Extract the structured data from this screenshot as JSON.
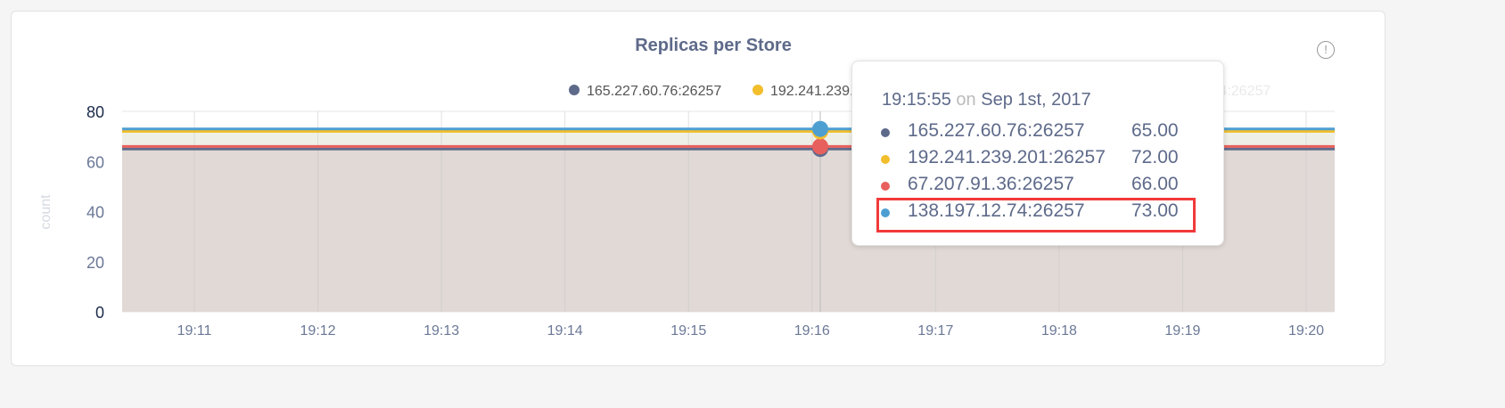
{
  "chart_data": {
    "type": "area",
    "title": "Replicas per Store",
    "ylabel": "count",
    "xlabel": "",
    "ylim": [
      0,
      80
    ],
    "yticks": [
      0,
      20,
      40,
      60,
      80
    ],
    "xticks": [
      "19:11",
      "19:12",
      "19:13",
      "19:14",
      "19:15",
      "19:16",
      "19:17",
      "19:18",
      "19:19",
      "19:20"
    ],
    "grid": true,
    "legend_position": "top",
    "series": [
      {
        "name": "165.227.60.76:26257",
        "value": 65,
        "color": "#5e6a8a"
      },
      {
        "name": "192.241.239.201:26257",
        "value": 72,
        "color": "#f2be2c"
      },
      {
        "name": "67.207.91.36:26257",
        "value": 66,
        "color": "#e8605d"
      },
      {
        "name": "138.197.12.74:26257",
        "value": 73,
        "color": "#4e9fd1"
      }
    ]
  },
  "tooltip": {
    "time": "19:15:55",
    "on": "on",
    "date": "Sep 1st, 2017",
    "rows": [
      {
        "label": "165.227.60.76:26257",
        "value": "65.00"
      },
      {
        "label": "192.241.239.201:26257",
        "value": "72.00"
      },
      {
        "label": "67.207.91.36:26257",
        "value": "66.00"
      },
      {
        "label": "138.197.12.74:26257",
        "value": "73.00"
      }
    ],
    "highlighted_row": 3
  },
  "info_icon": "exclamation-circle-icon",
  "info_symbol": "!"
}
